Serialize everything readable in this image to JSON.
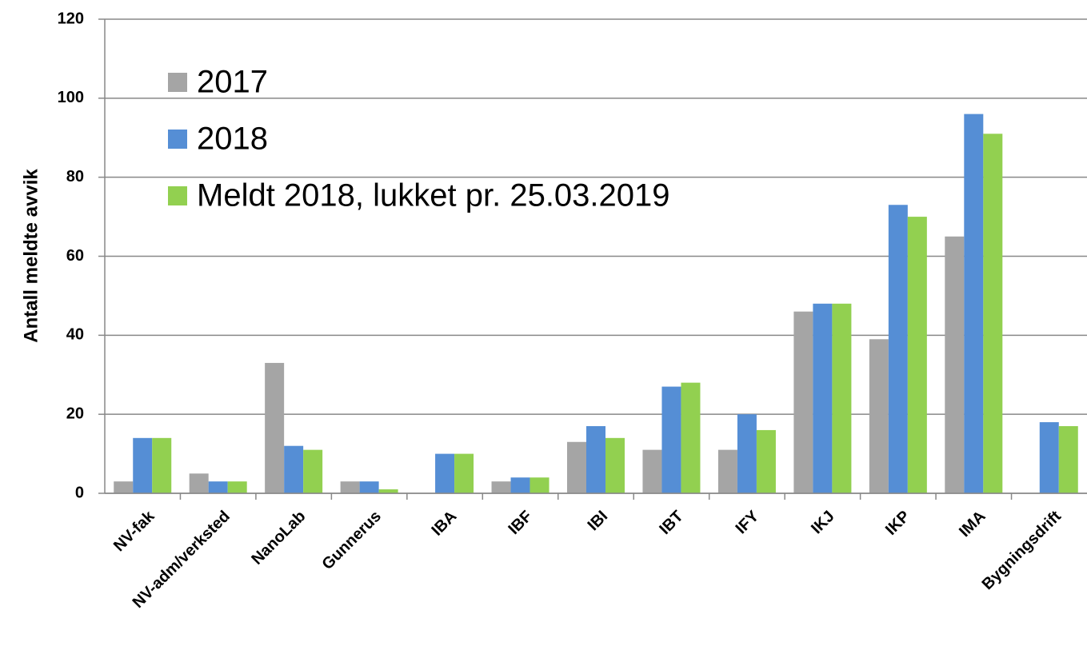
{
  "chart_data": {
    "type": "bar",
    "y_label": "Antall meldte avvik",
    "categories": [
      "NV-fak",
      "NV-adm/verksted",
      "NanoLab",
      "Gunnerus",
      "IBA",
      "IBF",
      "IBI",
      "IBT",
      "IFY",
      "IKJ",
      "IKP",
      "IMA",
      "Bygningsdrift"
    ],
    "series": [
      {
        "name": "2017",
        "color": "#a5a5a5",
        "values": [
          3,
          5,
          33,
          3,
          0,
          3,
          13,
          11,
          11,
          46,
          39,
          65,
          0
        ]
      },
      {
        "name": "2018",
        "color": "#558ed5",
        "values": [
          14,
          3,
          12,
          3,
          10,
          4,
          17,
          27,
          20,
          48,
          73,
          96,
          18
        ]
      },
      {
        "name": "Meldt 2018, lukket pr. 25.03.2019",
        "color": "#92d050",
        "values": [
          14,
          3,
          11,
          1,
          10,
          4,
          14,
          28,
          16,
          48,
          70,
          91,
          17
        ]
      }
    ],
    "ylim": [
      0,
      120
    ],
    "yticks": [
      0,
      20,
      40,
      60,
      80,
      100,
      120
    ],
    "grid": true,
    "legend": "top-left"
  }
}
